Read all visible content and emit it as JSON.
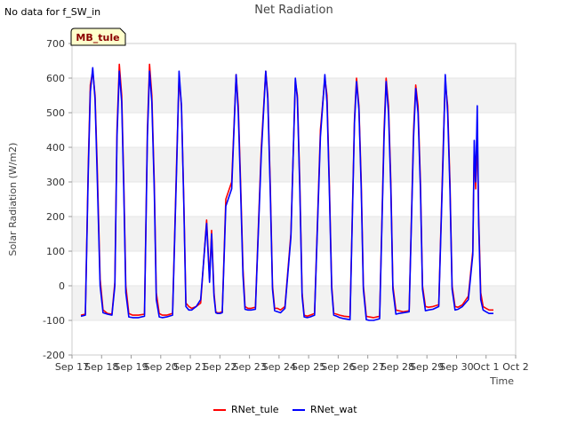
{
  "no_data_note": "No data for f_SW_in",
  "station_label": "MB_tule",
  "colors": {
    "tule": "#ff0000",
    "wat": "#0000ff",
    "band": "#f2f2f2",
    "station_bg": "#ffffcc"
  },
  "chart_data": {
    "type": "line",
    "title": "Net Radiation",
    "xlabel": "Time",
    "ylabel": "Solar Radiation (W/m2)",
    "ylim": [
      -200,
      700
    ],
    "yticks": [
      -200,
      -100,
      0,
      100,
      200,
      300,
      400,
      500,
      600,
      700
    ],
    "xlim": [
      0,
      15
    ],
    "xtick_labels": [
      "Sep 17",
      "Sep 18",
      "Sep 19",
      "Sep 20",
      "Sep 21",
      "Sep 22",
      "Sep 23",
      "Sep 24",
      "Sep 25",
      "Sep 26",
      "Sep 27",
      "Sep 28",
      "Sep 29",
      "Sep 30",
      "Oct 1",
      "Oct 2"
    ],
    "legend": [
      "RNet_tule",
      "RNet_wat"
    ],
    "legend_position": "bottom-center",
    "series": [
      {
        "name": "RNet_tule",
        "x": [
          0.3,
          0.45,
          0.55,
          0.62,
          0.7,
          0.78,
          0.85,
          0.95,
          1.05,
          1.2,
          1.35,
          1.45,
          1.52,
          1.6,
          1.68,
          1.75,
          1.82,
          1.92,
          2.05,
          2.25,
          2.45,
          2.55,
          2.62,
          2.7,
          2.78,
          2.85,
          2.95,
          3.05,
          3.2,
          3.4,
          3.55,
          3.62,
          3.7,
          3.78,
          3.85,
          3.95,
          4.05,
          4.2,
          4.35,
          4.55,
          4.65,
          4.72,
          4.8,
          4.86,
          4.92,
          5.0,
          5.08,
          5.2,
          5.4,
          5.55,
          5.62,
          5.7,
          5.78,
          5.85,
          5.95,
          6.05,
          6.2,
          6.4,
          6.55,
          6.62,
          6.7,
          6.78,
          6.85,
          6.95,
          7.05,
          7.2,
          7.4,
          7.55,
          7.62,
          7.7,
          7.78,
          7.85,
          7.95,
          8.05,
          8.2,
          8.4,
          8.55,
          8.62,
          8.7,
          8.78,
          8.85,
          8.95,
          9.05,
          9.2,
          9.4,
          9.55,
          9.62,
          9.7,
          9.78,
          9.85,
          9.95,
          10.05,
          10.2,
          10.4,
          10.55,
          10.62,
          10.7,
          10.78,
          10.85,
          10.95,
          11.05,
          11.2,
          11.4,
          11.55,
          11.62,
          11.7,
          11.78,
          11.85,
          11.95,
          12.05,
          12.2,
          12.4,
          12.55,
          12.62,
          12.7,
          12.78,
          12.85,
          12.95,
          13.05,
          13.2,
          13.4,
          13.55,
          13.6,
          13.65,
          13.7,
          13.75,
          13.82,
          13.9,
          14.0,
          14.1,
          14.25
        ],
        "y": [
          -85,
          -82,
          350,
          580,
          620,
          550,
          350,
          20,
          -70,
          -80,
          -82,
          10,
          450,
          640,
          550,
          300,
          0,
          -80,
          -85,
          -85,
          -82,
          450,
          640,
          550,
          300,
          -20,
          -80,
          -85,
          -85,
          -80,
          400,
          600,
          520,
          250,
          -50,
          -60,
          -65,
          -60,
          -50,
          190,
          20,
          160,
          -20,
          -75,
          -78,
          -78,
          -75,
          250,
          300,
          610,
          520,
          300,
          50,
          -60,
          -65,
          -65,
          -62,
          400,
          620,
          550,
          300,
          0,
          -65,
          -65,
          -70,
          -60,
          150,
          590,
          550,
          300,
          -20,
          -85,
          -88,
          -85,
          -80,
          450,
          600,
          550,
          300,
          0,
          -80,
          -82,
          -85,
          -88,
          -90,
          480,
          600,
          520,
          300,
          0,
          -88,
          -90,
          -92,
          -88,
          450,
          600,
          520,
          300,
          0,
          -70,
          -72,
          -75,
          -72,
          450,
          580,
          520,
          300,
          0,
          -60,
          -62,
          -60,
          -55,
          400,
          590,
          520,
          300,
          0,
          -60,
          -62,
          -55,
          -30,
          100,
          400,
          280,
          450,
          200,
          -20,
          -60,
          -65,
          -70,
          -70
        ]
      },
      {
        "name": "RNet_wat",
        "x": [
          0.3,
          0.45,
          0.55,
          0.62,
          0.7,
          0.78,
          0.85,
          0.95,
          1.05,
          1.2,
          1.35,
          1.45,
          1.52,
          1.6,
          1.68,
          1.75,
          1.82,
          1.92,
          2.05,
          2.25,
          2.45,
          2.55,
          2.62,
          2.7,
          2.78,
          2.85,
          2.95,
          3.05,
          3.2,
          3.4,
          3.55,
          3.62,
          3.7,
          3.78,
          3.85,
          3.95,
          4.05,
          4.2,
          4.35,
          4.55,
          4.65,
          4.72,
          4.8,
          4.86,
          4.92,
          5.0,
          5.08,
          5.2,
          5.4,
          5.55,
          5.62,
          5.7,
          5.78,
          5.85,
          5.95,
          6.05,
          6.2,
          6.4,
          6.55,
          6.62,
          6.7,
          6.78,
          6.85,
          6.95,
          7.05,
          7.2,
          7.4,
          7.55,
          7.62,
          7.7,
          7.78,
          7.85,
          7.95,
          8.05,
          8.2,
          8.4,
          8.55,
          8.62,
          8.7,
          8.78,
          8.85,
          8.95,
          9.05,
          9.2,
          9.4,
          9.55,
          9.62,
          9.7,
          9.78,
          9.85,
          9.95,
          10.05,
          10.2,
          10.4,
          10.55,
          10.62,
          10.7,
          10.78,
          10.85,
          10.95,
          11.05,
          11.2,
          11.4,
          11.55,
          11.62,
          11.7,
          11.78,
          11.85,
          11.95,
          12.05,
          12.2,
          12.4,
          12.55,
          12.62,
          12.7,
          12.78,
          12.85,
          12.95,
          13.05,
          13.2,
          13.4,
          13.55,
          13.6,
          13.65,
          13.7,
          13.75,
          13.82,
          13.9,
          14.0,
          14.1,
          14.25
        ],
        "y": [
          -88,
          -85,
          330,
          560,
          630,
          540,
          320,
          0,
          -78,
          -82,
          -85,
          0,
          430,
          620,
          530,
          280,
          -20,
          -90,
          -92,
          -92,
          -88,
          430,
          620,
          530,
          280,
          -40,
          -90,
          -92,
          -90,
          -85,
          380,
          620,
          520,
          240,
          -60,
          -70,
          -70,
          -60,
          -40,
          180,
          10,
          150,
          -30,
          -78,
          -80,
          -80,
          -78,
          230,
          280,
          610,
          500,
          280,
          30,
          -68,
          -70,
          -70,
          -68,
          380,
          620,
          540,
          280,
          -10,
          -72,
          -75,
          -78,
          -65,
          140,
          600,
          540,
          280,
          -30,
          -90,
          -92,
          -90,
          -85,
          430,
          610,
          530,
          280,
          -10,
          -85,
          -88,
          -92,
          -95,
          -98,
          470,
          590,
          510,
          280,
          -10,
          -98,
          -100,
          -100,
          -95,
          430,
          590,
          500,
          280,
          -10,
          -82,
          -80,
          -78,
          -75,
          430,
          570,
          500,
          280,
          -10,
          -72,
          -70,
          -68,
          -60,
          380,
          610,
          500,
          280,
          -10,
          -70,
          -68,
          -60,
          -40,
          90,
          420,
          300,
          520,
          180,
          -40,
          -70,
          -75,
          -80,
          -80
        ]
      }
    ]
  }
}
